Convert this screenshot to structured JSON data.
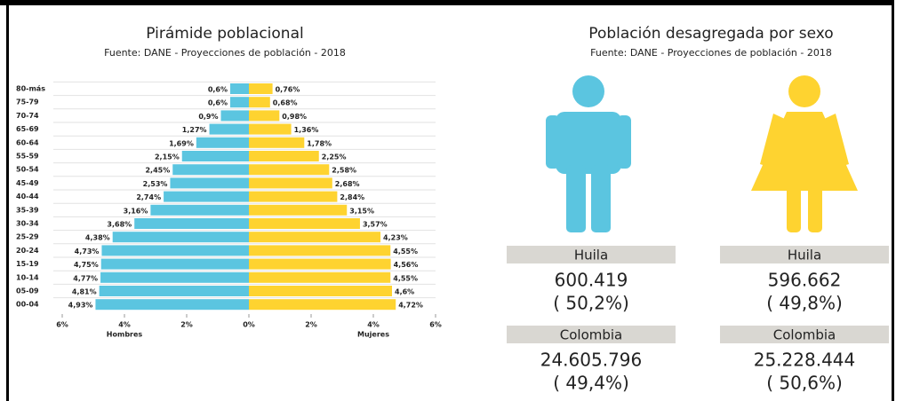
{
  "chart_data": {
    "type": "bar",
    "title": "Pirámide poblacional",
    "subtitle": "Fuente: DANE - Proyecciones de población - 2018",
    "categories": [
      "80-más",
      "75-79",
      "70-74",
      "65-69",
      "60-64",
      "55-59",
      "50-54",
      "45-49",
      "40-44",
      "35-39",
      "30-34",
      "25-29",
      "20-24",
      "15-19",
      "10-14",
      "05-09",
      "00-04"
    ],
    "series": [
      {
        "name": "Hombres",
        "color": "#5bc5e0",
        "values": [
          0.6,
          0.6,
          0.9,
          1.27,
          1.69,
          2.15,
          2.45,
          2.53,
          2.74,
          3.16,
          3.68,
          4.38,
          4.73,
          4.75,
          4.77,
          4.81,
          4.93
        ],
        "value_labels": [
          "0,6%",
          "0,6%",
          "0,9%",
          "1,27%",
          "1,69%",
          "2,15%",
          "2,45%",
          "2,53%",
          "2,74%",
          "3,16%",
          "3,68%",
          "4,38%",
          "4,73%",
          "4,75%",
          "4,77%",
          "4,81%",
          "4,93%"
        ]
      },
      {
        "name": "Mujeres",
        "color": "#fed330",
        "values": [
          0.76,
          0.68,
          0.98,
          1.36,
          1.78,
          2.25,
          2.58,
          2.68,
          2.84,
          3.15,
          3.57,
          4.23,
          4.55,
          4.56,
          4.55,
          4.6,
          4.72
        ],
        "value_labels": [
          "0,76%",
          "0,68%",
          "0,98%",
          "1,36%",
          "1,78%",
          "2,25%",
          "2,58%",
          "2,68%",
          "2,84%",
          "3,15%",
          "3,57%",
          "4,23%",
          "4,55%",
          "4,56%",
          "4,55%",
          "4,6%",
          "4,72%"
        ]
      }
    ],
    "xlim": [
      -6,
      6
    ],
    "xticks": [
      {
        "value": -6,
        "label": "6%"
      },
      {
        "value": -4,
        "label": "4%"
      },
      {
        "value": -2,
        "label": "2%"
      },
      {
        "value": 0,
        "label": "0%"
      },
      {
        "value": 2,
        "label": "2%"
      },
      {
        "value": 4,
        "label": "4%"
      },
      {
        "value": 6,
        "label": "6%"
      }
    ]
  },
  "sex_panel": {
    "title": "Población desagregada por sexo",
    "subtitle": "Fuente: DANE - Proyecciones de población - 2018",
    "columns": [
      {
        "rows": [
          {
            "region": "Huila",
            "count": "600.419",
            "share": "( 50,2%)"
          },
          {
            "region": "Colombia",
            "count": "24.605.796",
            "share": "( 49,4%)"
          }
        ]
      },
      {
        "rows": [
          {
            "region": "Huila",
            "count": "596.662",
            "share": "( 49,8%)"
          },
          {
            "region": "Colombia",
            "count": "25.228.444",
            "share": "( 50,6%)"
          }
        ]
      }
    ]
  }
}
